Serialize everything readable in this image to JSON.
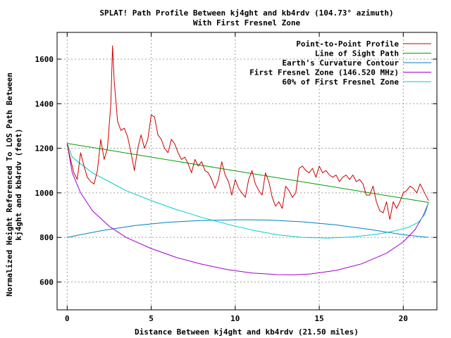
{
  "chart_data": {
    "type": "line",
    "title": "SPLAT! Path Profile Between kj4ght and kb4rdv (104.73° azimuth)",
    "subtitle": "With First Fresnel Zone",
    "xlabel": "Distance Between kj4ght and kb4rdv (21.50 miles)",
    "ylabel_line1": "Normalized Height Referenced To LOS Path Between",
    "ylabel_line2": "kj4ght and kb4rdv (feet)",
    "xlim": [
      -0.6,
      22.0
    ],
    "ylim": [
      475,
      1720
    ],
    "x_ticks": [
      0,
      5,
      10,
      15,
      20
    ],
    "x_tick_labels": [
      "0",
      "5",
      "10",
      "15",
      "20"
    ],
    "y_ticks": [
      600,
      800,
      1000,
      1200,
      1400,
      1600
    ],
    "y_tick_labels": [
      "600",
      "800",
      "1000",
      "1200",
      "1400",
      "1600"
    ],
    "grid": true,
    "legend_position": "top-right",
    "colors": {
      "profile": "#cc0000",
      "los": "#00a000",
      "curvature": "#0080c0",
      "fresnel": "#a000d0",
      "fresnel60": "#00cccc",
      "grid": "#a0a0a0"
    },
    "series": [
      {
        "name": "Point-to-Point Profile",
        "x": [
          0,
          0.2,
          0.4,
          0.6,
          0.8,
          1.0,
          1.2,
          1.4,
          1.6,
          1.8,
          2.0,
          2.2,
          2.4,
          2.6,
          2.7,
          2.8,
          3.0,
          3.2,
          3.4,
          3.6,
          3.8,
          4.0,
          4.2,
          4.4,
          4.6,
          4.8,
          5.0,
          5.2,
          5.4,
          5.6,
          5.8,
          6.0,
          6.2,
          6.4,
          6.6,
          6.8,
          7.0,
          7.2,
          7.4,
          7.6,
          7.8,
          8.0,
          8.2,
          8.4,
          8.6,
          8.8,
          9.0,
          9.2,
          9.4,
          9.6,
          9.8,
          10.0,
          10.2,
          10.4,
          10.6,
          10.8,
          11.0,
          11.2,
          11.4,
          11.6,
          11.8,
          12.0,
          12.2,
          12.4,
          12.6,
          12.8,
          13.0,
          13.2,
          13.4,
          13.6,
          13.8,
          14.0,
          14.2,
          14.4,
          14.6,
          14.8,
          15.0,
          15.2,
          15.4,
          15.6,
          15.8,
          16.0,
          16.2,
          16.4,
          16.6,
          16.8,
          17.0,
          17.2,
          17.4,
          17.6,
          17.8,
          18.0,
          18.2,
          18.4,
          18.6,
          18.8,
          19.0,
          19.2,
          19.4,
          19.6,
          19.8,
          20.0,
          20.2,
          20.4,
          20.6,
          20.8,
          21.0,
          21.2,
          21.4,
          21.5
        ],
        "values": [
          1220,
          1150,
          1090,
          1060,
          1180,
          1120,
          1070,
          1050,
          1040,
          1100,
          1240,
          1150,
          1200,
          1400,
          1660,
          1500,
          1320,
          1280,
          1290,
          1250,
          1180,
          1100,
          1200,
          1260,
          1200,
          1240,
          1350,
          1340,
          1260,
          1240,
          1200,
          1180,
          1240,
          1220,
          1180,
          1150,
          1160,
          1130,
          1090,
          1150,
          1120,
          1140,
          1100,
          1090,
          1060,
          1020,
          1060,
          1140,
          1080,
          1050,
          990,
          1060,
          1020,
          1000,
          980,
          1060,
          1100,
          1040,
          1010,
          990,
          1090,
          1050,
          980,
          940,
          960,
          930,
          1030,
          1010,
          980,
          1000,
          1110,
          1120,
          1100,
          1090,
          1110,
          1070,
          1120,
          1090,
          1100,
          1080,
          1070,
          1080,
          1050,
          1070,
          1080,
          1060,
          1080,
          1050,
          1060,
          1040,
          990,
          990,
          1030,
          960,
          920,
          910,
          960,
          880,
          960,
          930,
          960,
          1000,
          1010,
          1030,
          1020,
          1000,
          1040,
          1010,
          980,
          965
        ]
      },
      {
        "name": "Line of Sight Path",
        "x": [
          0,
          21.5
        ],
        "values": [
          1222,
          957
        ]
      },
      {
        "name": "Earth's Curvature Contour",
        "x": [
          0,
          2,
          4,
          6,
          8,
          10,
          10.75,
          12,
          14,
          16,
          18,
          20,
          21.5
        ],
        "values": [
          800,
          830,
          853,
          868,
          876,
          879,
          879,
          878,
          870,
          856,
          836,
          812,
          800
        ]
      },
      {
        "name": "First Fresnel Zone (146.520 MHz)",
        "x": [
          0,
          0.3,
          0.8,
          1.5,
          2.5,
          3.5,
          5,
          6.5,
          8,
          9.5,
          11,
          12.5,
          13.5,
          14.5,
          16,
          17.5,
          19,
          20,
          20.7,
          21.2,
          21.5
        ],
        "values": [
          1222,
          1090,
          1000,
          920,
          850,
          800,
          750,
          710,
          680,
          656,
          640,
          633,
          632,
          636,
          652,
          681,
          729,
          780,
          835,
          900,
          957
        ]
      },
      {
        "name": "60% of First Fresnel Zone",
        "x": [
          0,
          0.3,
          0.8,
          1.5,
          2.5,
          3.5,
          5,
          6.5,
          8,
          9.5,
          11,
          12.5,
          14,
          15.5,
          17,
          18.5,
          19.5,
          20.3,
          20.9,
          21.3,
          21.5
        ],
        "values": [
          1222,
          1160,
          1130,
          1090,
          1050,
          1010,
          965,
          925,
          890,
          860,
          833,
          812,
          800,
          797,
          802,
          815,
          830,
          845,
          868,
          905,
          957
        ]
      }
    ]
  }
}
